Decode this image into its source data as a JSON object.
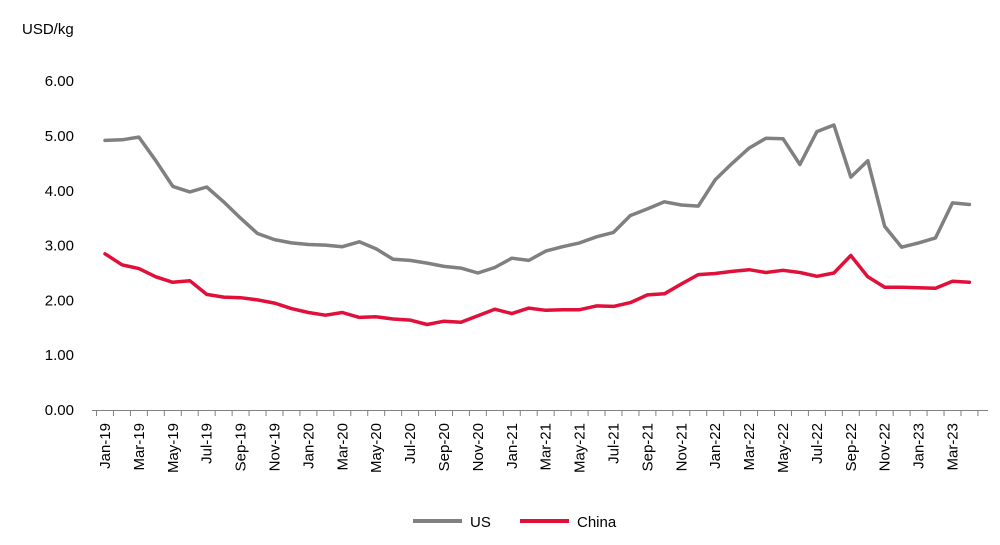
{
  "chart_data": {
    "type": "line",
    "ylabel": "USD/kg",
    "ylim": [
      0,
      6
    ],
    "yticks": [
      "0.00",
      "1.00",
      "2.00",
      "3.00",
      "4.00",
      "5.00",
      "6.00"
    ],
    "grid": false,
    "legend": "bottom-center",
    "categories": [
      "Jan-19",
      "Feb-19",
      "Mar-19",
      "Apr-19",
      "May-19",
      "Jun-19",
      "Jul-19",
      "Aug-19",
      "Sep-19",
      "Oct-19",
      "Nov-19",
      "Dec-19",
      "Jan-20",
      "Feb-20",
      "Mar-20",
      "Apr-20",
      "May-20",
      "Jun-20",
      "Jul-20",
      "Aug-20",
      "Sep-20",
      "Oct-20",
      "Nov-20",
      "Dec-20",
      "Jan-21",
      "Feb-21",
      "Mar-21",
      "Apr-21",
      "May-21",
      "Jun-21",
      "Jul-21",
      "Aug-21",
      "Sep-21",
      "Oct-21",
      "Nov-21",
      "Dec-21",
      "Jan-22",
      "Feb-22",
      "Mar-22",
      "Apr-22",
      "May-22",
      "Jun-22",
      "Jul-22",
      "Aug-22",
      "Sep-22",
      "Oct-22",
      "Nov-22",
      "Dec-22",
      "Jan-23",
      "Feb-23",
      "Mar-23",
      "Apr-23"
    ],
    "xticks": [
      "Jan-19",
      "Mar-19",
      "May-19",
      "Jul-19",
      "Sep-19",
      "Nov-19",
      "Jan-20",
      "Mar-20",
      "May-20",
      "Jul-20",
      "Sep-20",
      "Nov-20",
      "Jan-21",
      "Mar-21",
      "May-21",
      "Jul-21",
      "Sep-21",
      "Nov-21",
      "Jan-22",
      "Mar-22",
      "May-22",
      "Jul-22",
      "Sep-22",
      "Nov-22",
      "Jan-23",
      "Mar-23"
    ],
    "series": [
      {
        "name": "US",
        "color": "#808080",
        "values": [
          4.92,
          4.93,
          4.98,
          4.55,
          4.08,
          3.98,
          4.07,
          3.8,
          3.5,
          3.22,
          3.11,
          3.05,
          3.02,
          3.01,
          2.98,
          3.07,
          2.94,
          2.75,
          2.73,
          2.68,
          2.62,
          2.59,
          2.5,
          2.6,
          2.77,
          2.73,
          2.9,
          2.98,
          3.05,
          3.16,
          3.24,
          3.55,
          3.67,
          3.8,
          3.74,
          3.72,
          4.2,
          4.5,
          4.78,
          4.96,
          4.95,
          4.48,
          5.08,
          5.2,
          4.25,
          4.55,
          3.35,
          2.97,
          3.05,
          3.14,
          3.78,
          3.75
        ]
      },
      {
        "name": "China",
        "color": "#e0103a",
        "values": [
          2.85,
          2.65,
          2.58,
          2.43,
          2.33,
          2.36,
          2.11,
          2.06,
          2.05,
          2.01,
          1.95,
          1.85,
          1.78,
          1.73,
          1.78,
          1.69,
          1.7,
          1.66,
          1.64,
          1.56,
          1.62,
          1.6,
          1.72,
          1.84,
          1.76,
          1.86,
          1.82,
          1.83,
          1.83,
          1.9,
          1.89,
          1.96,
          2.1,
          2.12,
          2.3,
          2.47,
          2.49,
          2.53,
          2.56,
          2.51,
          2.55,
          2.51,
          2.44,
          2.5,
          2.82,
          2.43,
          2.24,
          2.24,
          2.23,
          2.22,
          2.35,
          2.33
        ]
      }
    ]
  }
}
